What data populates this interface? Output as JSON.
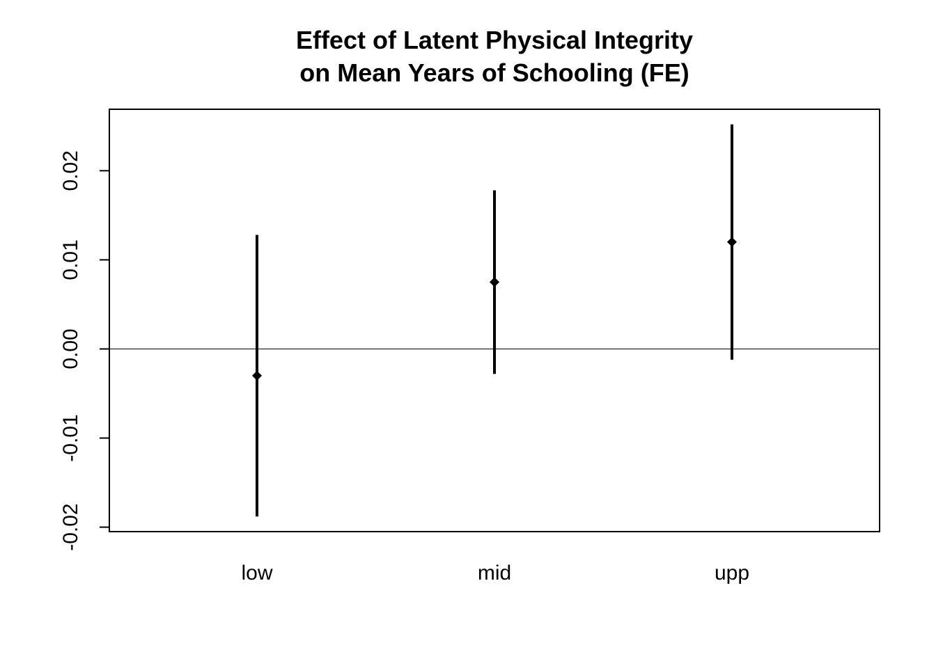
{
  "chart_data": {
    "type": "scatter",
    "subtype": "point-with-interval",
    "title_lines": [
      "Effect of Latent Physical Integrity",
      "on Mean Years of Schooling (FE)"
    ],
    "xlabel": "",
    "ylabel": "",
    "categories": [
      "low",
      "mid",
      "upp"
    ],
    "estimates": [
      -0.003,
      0.0075,
      0.012
    ],
    "lower": [
      -0.0188,
      -0.0028,
      -0.0012
    ],
    "upper": [
      0.0128,
      0.0178,
      0.0252
    ],
    "ylim": [
      -0.0205,
      0.0269
    ],
    "yticks": [
      -0.02,
      -0.01,
      0.0,
      0.01,
      0.02
    ],
    "ytick_labels": [
      "-0.02",
      "-0.01",
      "0.00",
      "0.01",
      "0.02"
    ],
    "reference_line": 0,
    "grid": false,
    "legend": "none",
    "colors": {
      "marks": "#000000",
      "background": "#ffffff"
    }
  }
}
